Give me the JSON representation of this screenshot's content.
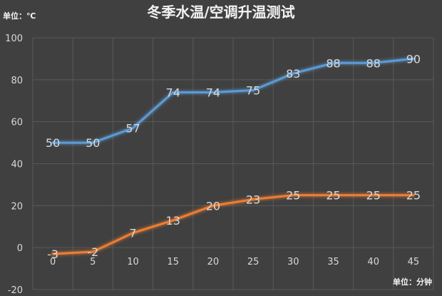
{
  "chart_data": {
    "type": "line",
    "title": "冬季水温/空调升温测试",
    "y_unit": "单位：℃",
    "x_unit": "单位：分钟",
    "x": [
      0,
      5,
      10,
      15,
      20,
      25,
      30,
      35,
      40,
      45
    ],
    "ylim": [
      -20,
      100
    ],
    "yticks": [
      -20,
      0,
      20,
      40,
      60,
      80,
      100
    ],
    "grid": true,
    "series": [
      {
        "values": [
          50,
          50,
          57,
          74,
          74,
          75,
          83,
          88,
          88,
          90
        ],
        "color": "#5b9bd5"
      },
      {
        "values": [
          -3,
          -2,
          7,
          13,
          20,
          23,
          25,
          25,
          25,
          25
        ],
        "color": "#ed7d31"
      }
    ]
  },
  "colors": {
    "background": "#404040",
    "gridline": "#595959",
    "axis_text": "#d9d9d9"
  }
}
